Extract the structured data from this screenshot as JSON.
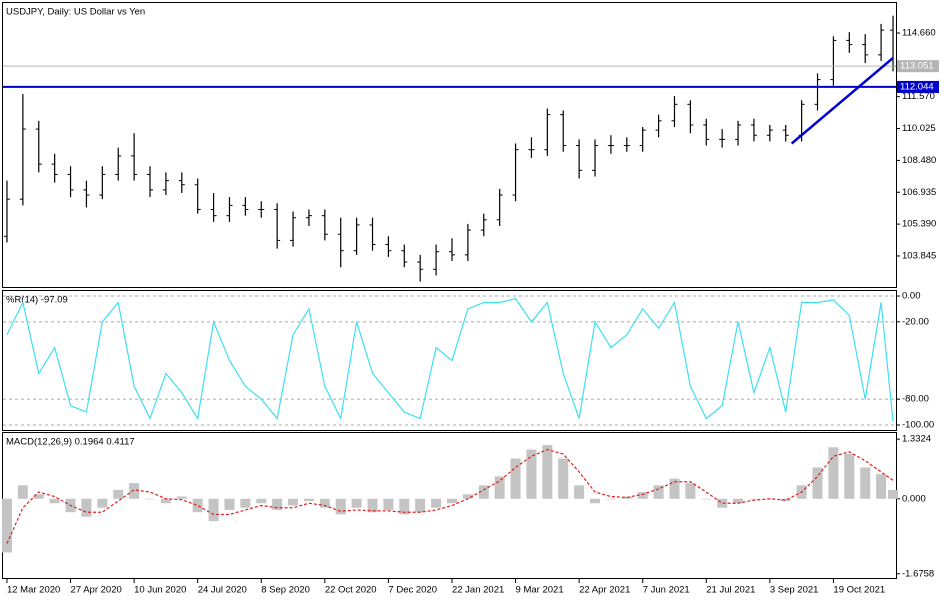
{
  "chart_data": [
    {
      "type": "ohlc",
      "title": "USDJPY, Daily:  US Dollar vs Yen",
      "color": "#000000",
      "x": [
        0,
        8,
        16,
        24,
        32,
        40,
        48,
        56,
        64,
        72,
        80,
        88,
        96,
        104,
        112,
        120,
        128,
        136,
        144,
        152,
        160,
        168,
        176,
        184,
        192,
        200,
        208,
        216,
        224,
        232,
        240,
        248,
        256,
        264,
        272,
        280,
        288,
        296,
        304,
        312,
        320,
        328,
        336,
        344,
        352,
        360,
        368,
        376,
        384,
        392,
        400,
        408,
        416,
        424,
        432,
        440,
        446
      ],
      "open": [
        104.8,
        106.6,
        110.0,
        108.3,
        107.8,
        107.05,
        106.8,
        107.8,
        108.7,
        107.8,
        107.05,
        107.5,
        107.3,
        106.1,
        105.8,
        106.3,
        106.1,
        106.1,
        104.6,
        105.7,
        105.8,
        104.9,
        104.1,
        105.35,
        104.4,
        104.1,
        103.55,
        103.2,
        104.05,
        103.9,
        105.1,
        105.6,
        106.8,
        109.0,
        109.0,
        110.7,
        109.2,
        108.0,
        109.2,
        109.2,
        109.2,
        109.95,
        110.4,
        111.2,
        110.2,
        109.5,
        109.5,
        110.2,
        109.7,
        109.95,
        109.7,
        111.2,
        112.4,
        114.3,
        114.1,
        113.6,
        114.8
      ],
      "high": [
        107.5,
        111.7,
        110.4,
        108.8,
        108.2,
        107.5,
        108.2,
        109.1,
        109.8,
        108.2,
        107.9,
        107.9,
        107.6,
        106.9,
        106.7,
        106.7,
        106.5,
        106.4,
        106.0,
        106.1,
        106.1,
        105.7,
        105.7,
        105.7,
        104.8,
        104.4,
        103.9,
        104.4,
        104.7,
        105.4,
        105.9,
        107.1,
        109.3,
        109.6,
        111.0,
        110.9,
        109.5,
        109.5,
        109.7,
        109.6,
        110.1,
        110.7,
        111.6,
        111.4,
        110.5,
        110.0,
        110.4,
        110.5,
        110.2,
        110.2,
        111.4,
        112.7,
        114.5,
        114.7,
        114.6,
        115.1,
        115.5
      ],
      "low": [
        104.5,
        106.3,
        107.9,
        107.4,
        106.7,
        106.2,
        106.6,
        107.5,
        107.5,
        106.7,
        106.8,
        106.9,
        105.9,
        105.5,
        105.5,
        105.8,
        105.7,
        104.2,
        104.3,
        105.3,
        104.6,
        103.3,
        103.9,
        104.1,
        103.8,
        103.3,
        102.6,
        102.9,
        103.6,
        103.6,
        104.8,
        105.3,
        106.5,
        108.6,
        108.7,
        108.9,
        107.6,
        107.7,
        108.8,
        108.9,
        108.9,
        109.6,
        110.1,
        109.8,
        109.2,
        109.1,
        109.2,
        109.4,
        109.4,
        109.4,
        109.4,
        110.9,
        112.1,
        113.7,
        113.2,
        113.3,
        112.8
      ],
      "close": [
        106.6,
        110.0,
        108.3,
        107.8,
        107.05,
        106.8,
        107.8,
        108.7,
        107.8,
        107.05,
        107.5,
        107.3,
        106.1,
        105.8,
        106.3,
        106.1,
        106.1,
        104.6,
        105.7,
        105.8,
        104.9,
        104.1,
        105.35,
        104.4,
        104.1,
        103.55,
        103.2,
        104.05,
        103.9,
        105.1,
        105.6,
        106.8,
        109.0,
        109.0,
        110.7,
        109.2,
        108.0,
        109.2,
        109.2,
        109.2,
        109.95,
        110.4,
        111.2,
        110.2,
        109.5,
        109.5,
        110.2,
        109.7,
        109.95,
        109.7,
        111.2,
        112.4,
        114.3,
        114.1,
        113.6,
        114.8,
        113.05
      ],
      "xlim": [
        -2,
        447
      ],
      "xticks": [
        {
          "value": 0,
          "label": "12 Mar 2020"
        },
        {
          "value": 32,
          "label": "27 Apr 2020"
        },
        {
          "value": 64,
          "label": "10 Jun 2020"
        },
        {
          "value": 96,
          "label": "24 Jul 2020"
        },
        {
          "value": 128,
          "label": "8 Sep 2020"
        },
        {
          "value": 160,
          "label": "22 Oct 2020"
        },
        {
          "value": 192,
          "label": "7 Dec 2020"
        },
        {
          "value": 224,
          "label": "22 Jan 2021"
        },
        {
          "value": 256,
          "label": "9 Mar 2021"
        },
        {
          "value": 288,
          "label": "22 Apr 2021"
        },
        {
          "value": 320,
          "label": "7 Jun 2021"
        },
        {
          "value": 352,
          "label": "21 Jul 2021"
        },
        {
          "value": 384,
          "label": "3 Sep 2021"
        },
        {
          "value": 416,
          "label": "19 Oct 2021"
        }
      ],
      "ylim": [
        102.34,
        116.115
      ],
      "yticks": [
        {
          "value": 114.66,
          "label": "114.660"
        },
        {
          "value": 111.57,
          "label": "111.570"
        },
        110.025,
        {
          "value": 108.48,
          "label": "108.480"
        },
        106.935,
        {
          "value": 105.39,
          "label": "105.390"
        },
        103.845
      ],
      "hlines": [
        {
          "value": 113.051,
          "color": "#b4b4b4"
        },
        {
          "value": 112.044,
          "color": "#0000cd"
        }
      ],
      "trendline": {
        "x": [
          395,
          446
        ],
        "values": [
          109.3,
          113.45
        ],
        "color": "#0000cd"
      }
    },
    {
      "type": "line",
      "title": "%R(14) -97.09",
      "color": "#3ee0f0",
      "values": [
        -30,
        -5,
        -60,
        -40,
        -85,
        -90,
        -20,
        -5,
        -70,
        -95,
        -60,
        -75,
        -95,
        -20,
        -50,
        -70,
        -80,
        -95,
        -30,
        -10,
        -70,
        -95,
        -20,
        -60,
        -75,
        -90,
        -95,
        -40,
        -50,
        -10,
        -5,
        -5,
        -2,
        -20,
        -5,
        -60,
        -95,
        -20,
        -40,
        -30,
        -10,
        -25,
        -5,
        -70,
        -95,
        -85,
        -20,
        -75,
        -40,
        -90,
        -5,
        -5,
        -3,
        -15,
        -80,
        -5,
        -97.09
      ],
      "ylim": [
        -103.9,
        3.9
      ],
      "yticks": [
        {
          "value": 0,
          "label": "0.00"
        },
        {
          "value": -20,
          "label": "-20.00"
        },
        {
          "value": -80,
          "label": "-80.00"
        },
        {
          "value": -100,
          "label": "-100.00"
        }
      ]
    },
    {
      "type": "macd",
      "title": "MACD(12,26,9) 0.1964 0.4117",
      "color": "#c4c4c4",
      "signal_color": "#e02020",
      "values": [
        -1.2,
        0.3,
        0.1,
        -0.1,
        -0.3,
        -0.4,
        -0.2,
        0.2,
        0.35,
        0.0,
        -0.1,
        0.05,
        -0.3,
        -0.5,
        -0.25,
        -0.2,
        -0.1,
        -0.25,
        -0.15,
        -0.05,
        -0.2,
        -0.35,
        -0.2,
        -0.3,
        -0.25,
        -0.35,
        -0.3,
        -0.2,
        -0.1,
        0.1,
        0.3,
        0.5,
        0.9,
        1.1,
        1.2,
        0.9,
        0.3,
        -0.1,
        0.0,
        0.05,
        0.15,
        0.3,
        0.45,
        0.35,
        0.0,
        -0.2,
        -0.1,
        0.0,
        0.0,
        -0.05,
        0.3,
        0.7,
        1.15,
        1.0,
        0.7,
        0.55,
        0.1964
      ],
      "signal": [
        -1.0,
        -0.2,
        0.15,
        0.05,
        -0.15,
        -0.3,
        -0.3,
        -0.05,
        0.2,
        0.15,
        0.0,
        -0.02,
        -0.15,
        -0.35,
        -0.35,
        -0.25,
        -0.15,
        -0.2,
        -0.2,
        -0.1,
        -0.15,
        -0.28,
        -0.25,
        -0.27,
        -0.27,
        -0.3,
        -0.3,
        -0.25,
        -0.15,
        0.0,
        0.2,
        0.4,
        0.7,
        0.95,
        1.1,
        1.0,
        0.6,
        0.15,
        0.05,
        0.03,
        0.1,
        0.22,
        0.38,
        0.38,
        0.15,
        -0.1,
        -0.1,
        -0.03,
        0.0,
        -0.03,
        0.15,
        0.5,
        0.95,
        1.05,
        0.85,
        0.6,
        0.4117
      ],
      "ylim": [
        -1.77,
        1.47
      ],
      "yticks": [
        1.3324,
        {
          "value": 0,
          "label": "0.000"
        },
        -1.6758
      ]
    }
  ]
}
